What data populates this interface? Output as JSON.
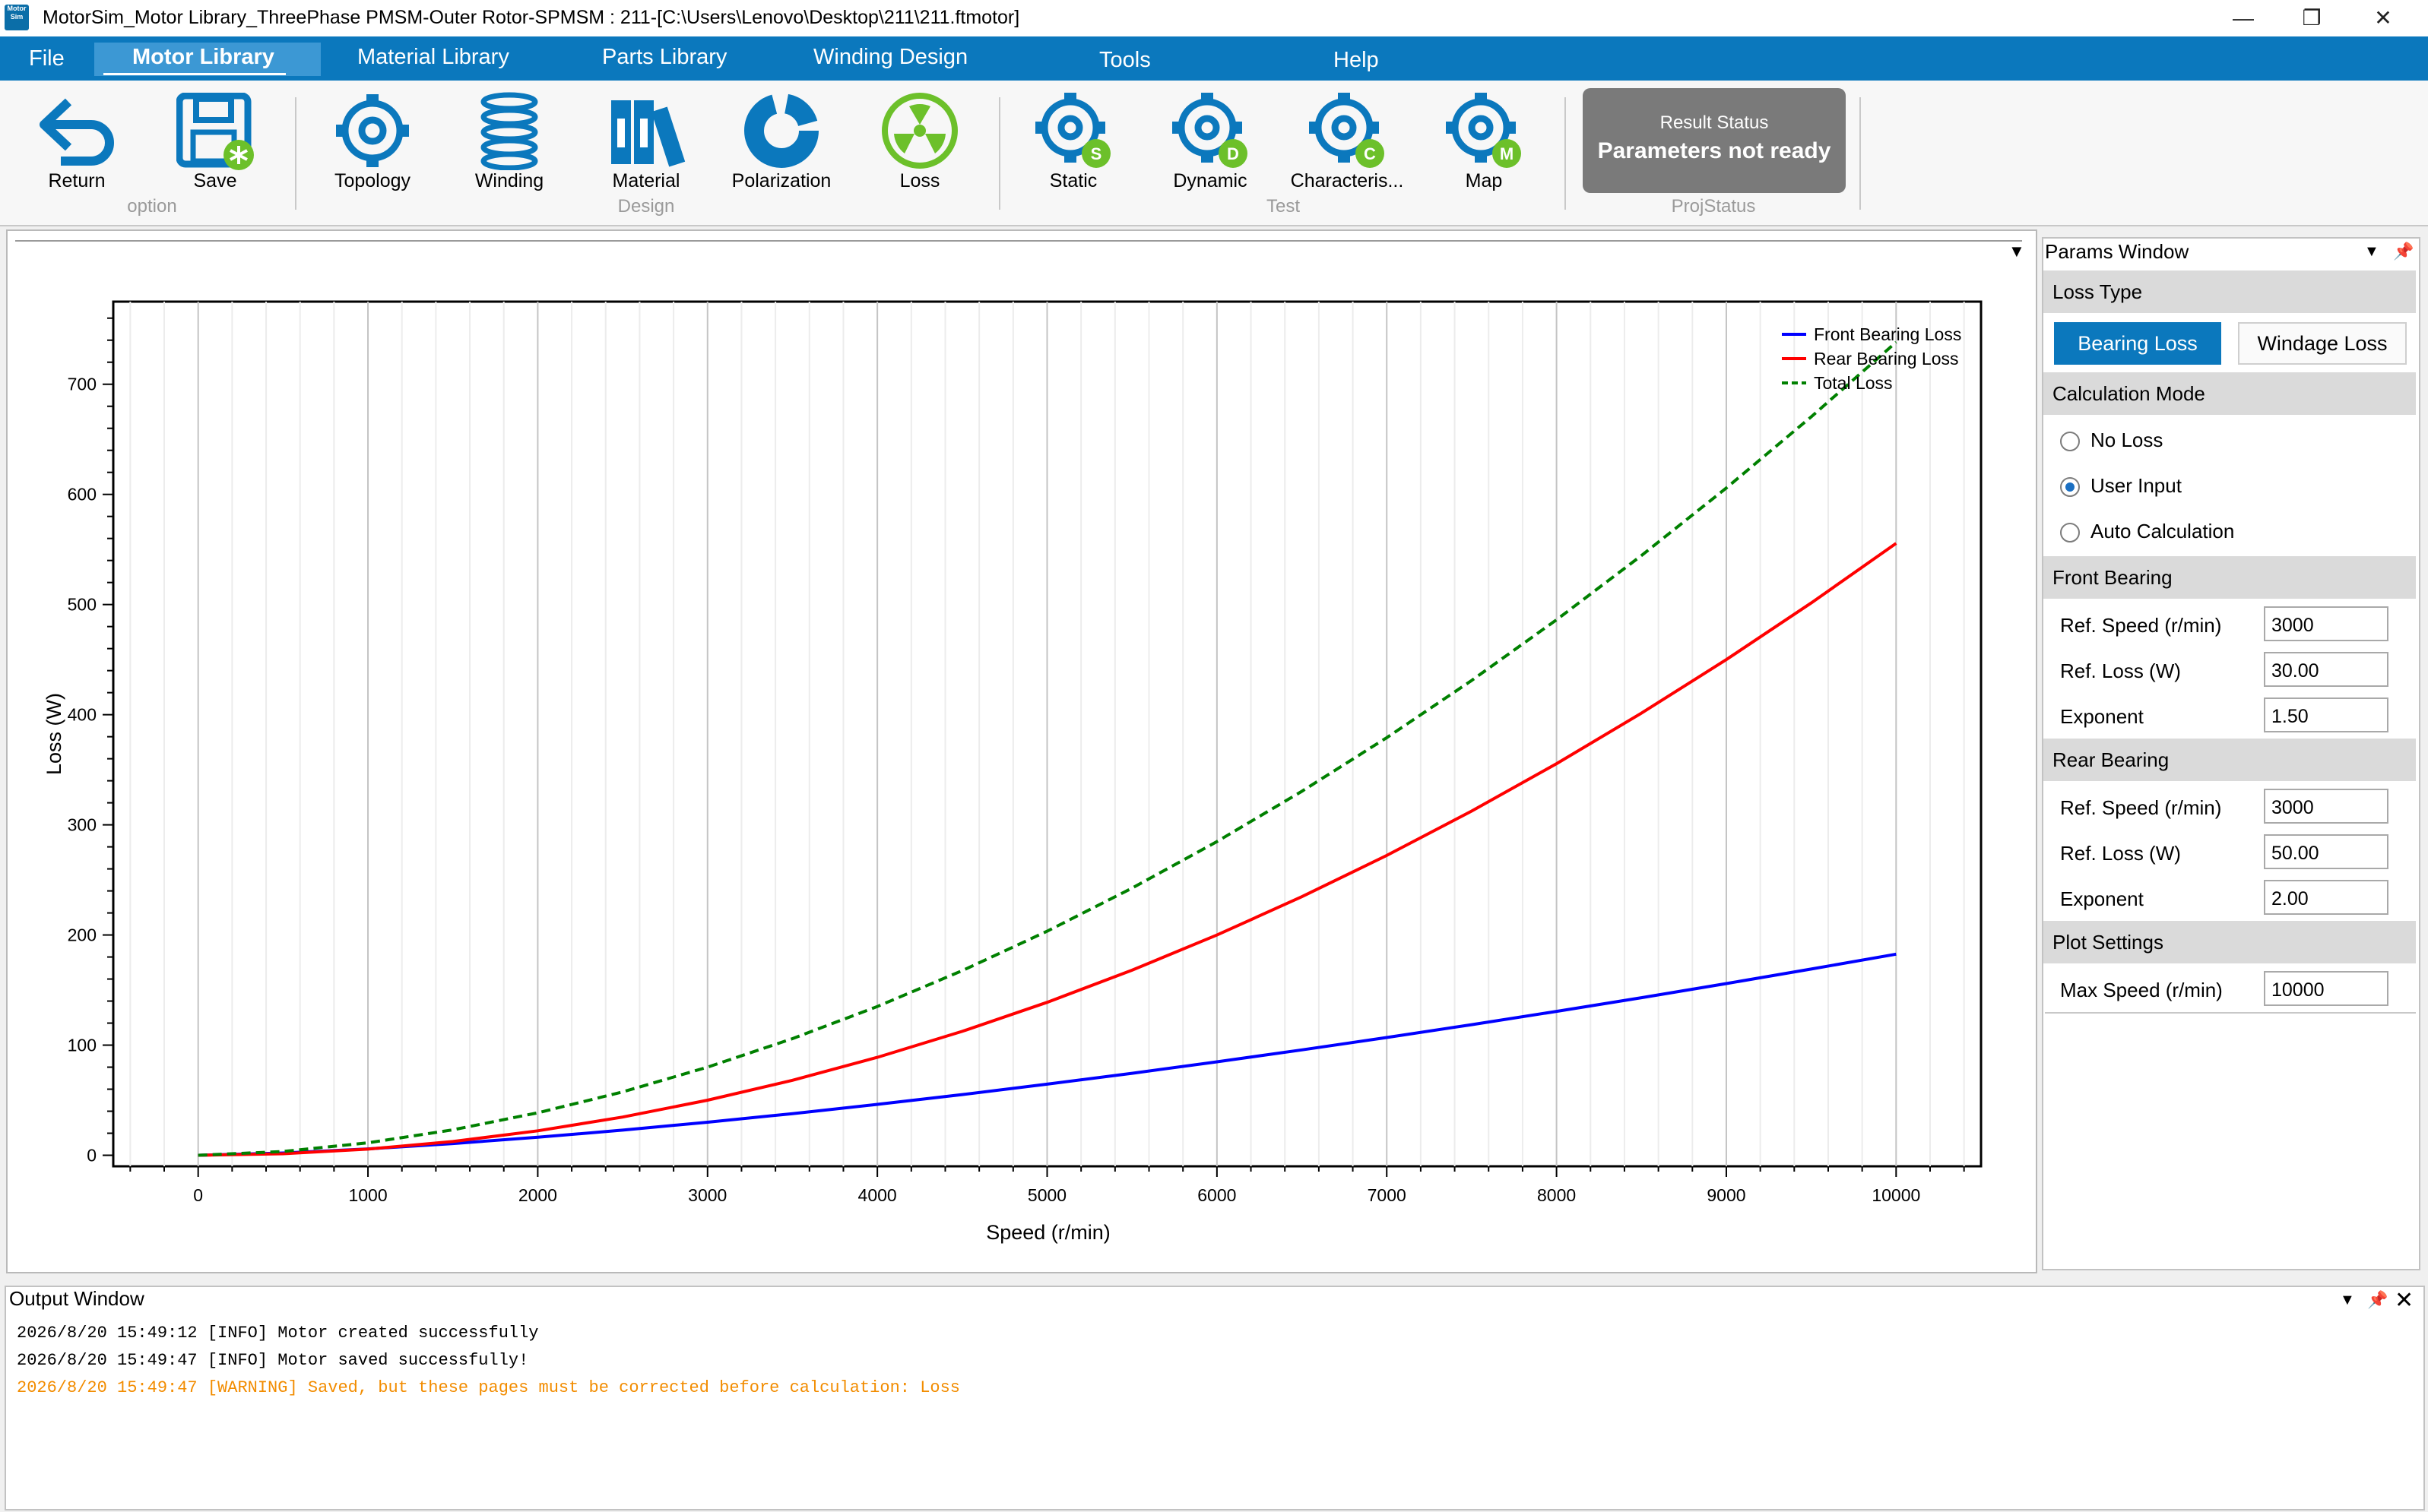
{
  "window": {
    "title": "MotorSim_Motor Library_ThreePhase PMSM-Outer Rotor-SPMSM : 211-[C:\\Users\\Lenovo\\Desktop\\211\\211.ftmotor]",
    "logo_text": "Motor Sim",
    "minimize": "—",
    "restore": "❐",
    "close": "✕"
  },
  "menu": [
    "File",
    "Motor Library",
    "Material Library",
    "Parts Library",
    "Winding Design",
    "Tools",
    "Help"
  ],
  "ribbon": {
    "option": {
      "group": "option",
      "return": "Return",
      "save": "Save"
    },
    "design": {
      "group": "Design",
      "topology": "Topology",
      "winding": "Winding",
      "material": "Material",
      "polarization": "Polarization",
      "loss": "Loss"
    },
    "test": {
      "group": "Test",
      "static": "Static",
      "dynamic": "Dynamic",
      "characteristics": "Characteris...",
      "map": "Map"
    },
    "projstatus": {
      "group": "ProjStatus",
      "status_title": "Result Status",
      "status_value": "Parameters not ready"
    },
    "colors": {
      "blue": "#0b78bd",
      "green": "#6cc02a"
    }
  },
  "params": {
    "title": "Params Window",
    "loss_type": {
      "label": "Loss Type",
      "bearing": "Bearing Loss",
      "windage": "Windage Loss"
    },
    "calc_mode": {
      "label": "Calculation Mode",
      "options": [
        "No Loss",
        "User Input",
        "Auto Calculation"
      ],
      "selected": "User Input"
    },
    "front": {
      "label": "Front Bearing",
      "ref_speed_label": "Ref. Speed (r/min)",
      "ref_speed": "3000",
      "ref_loss_label": "Ref. Loss (W)",
      "ref_loss": "30.00",
      "exponent_label": "Exponent",
      "exponent": "1.50"
    },
    "rear": {
      "label": "Rear Bearing",
      "ref_speed_label": "Ref. Speed (r/min)",
      "ref_speed": "3000",
      "ref_loss_label": "Ref. Loss (W)",
      "ref_loss": "50.00",
      "exponent_label": "Exponent",
      "exponent": "2.00"
    },
    "plot": {
      "label": "Plot Settings",
      "max_speed_label": "Max Speed (r/min)",
      "max_speed": "10000"
    }
  },
  "output": {
    "title": "Output Window",
    "lines": [
      {
        "text": "2026/8/20 15:49:12 [INFO] Motor created successfully",
        "level": "info"
      },
      {
        "text": "2026/8/20 15:49:47 [INFO] Motor saved successfully!",
        "level": "info"
      },
      {
        "text": "2026/8/20 15:49:47 [WARNING] Saved, but these pages must be corrected before calculation: Loss",
        "level": "warning"
      }
    ],
    "warning_color": "#f28c00"
  },
  "chart_data": {
    "type": "line",
    "xlabel": "Speed (r/min)",
    "ylabel": "Loss (W)",
    "xlim": [
      -500,
      10500
    ],
    "ylim": [
      -10,
      775
    ],
    "xticks": [
      0,
      1000,
      2000,
      3000,
      4000,
      5000,
      6000,
      7000,
      8000,
      9000,
      10000
    ],
    "yticks": [
      0,
      100,
      200,
      300,
      400,
      500,
      600,
      700
    ],
    "grid": true,
    "legend": "top-right",
    "x": [
      0,
      500,
      1000,
      1500,
      2000,
      2500,
      3000,
      3500,
      4000,
      4500,
      5000,
      5500,
      6000,
      6500,
      7000,
      7500,
      8000,
      8500,
      9000,
      9500,
      10000
    ],
    "series": [
      {
        "name": "Front Bearing Loss",
        "color": "#0000ff",
        "dash": false,
        "values": [
          0,
          2.04,
          5.77,
          10.61,
          16.33,
          22.82,
          30.0,
          37.8,
          46.19,
          55.11,
          64.55,
          74.46,
          84.85,
          95.68,
          106.93,
          118.59,
          130.64,
          143.07,
          155.88,
          169.04,
          182.57
        ]
      },
      {
        "name": "Rear Bearing Loss",
        "color": "#ff0000",
        "dash": false,
        "values": [
          0,
          1.39,
          5.56,
          12.5,
          22.22,
          34.72,
          50.0,
          68.06,
          88.89,
          112.5,
          138.89,
          168.06,
          200.0,
          234.72,
          272.22,
          312.5,
          355.56,
          401.39,
          450.0,
          501.39,
          555.56
        ]
      },
      {
        "name": "Total Loss",
        "color": "#008000",
        "dash": true,
        "values": [
          0,
          3.43,
          11.33,
          23.11,
          38.55,
          57.54,
          80.0,
          105.86,
          135.08,
          167.61,
          203.44,
          242.52,
          284.85,
          330.4,
          379.15,
          431.09,
          486.2,
          544.46,
          605.88,
          670.43,
          738.13
        ]
      }
    ]
  }
}
